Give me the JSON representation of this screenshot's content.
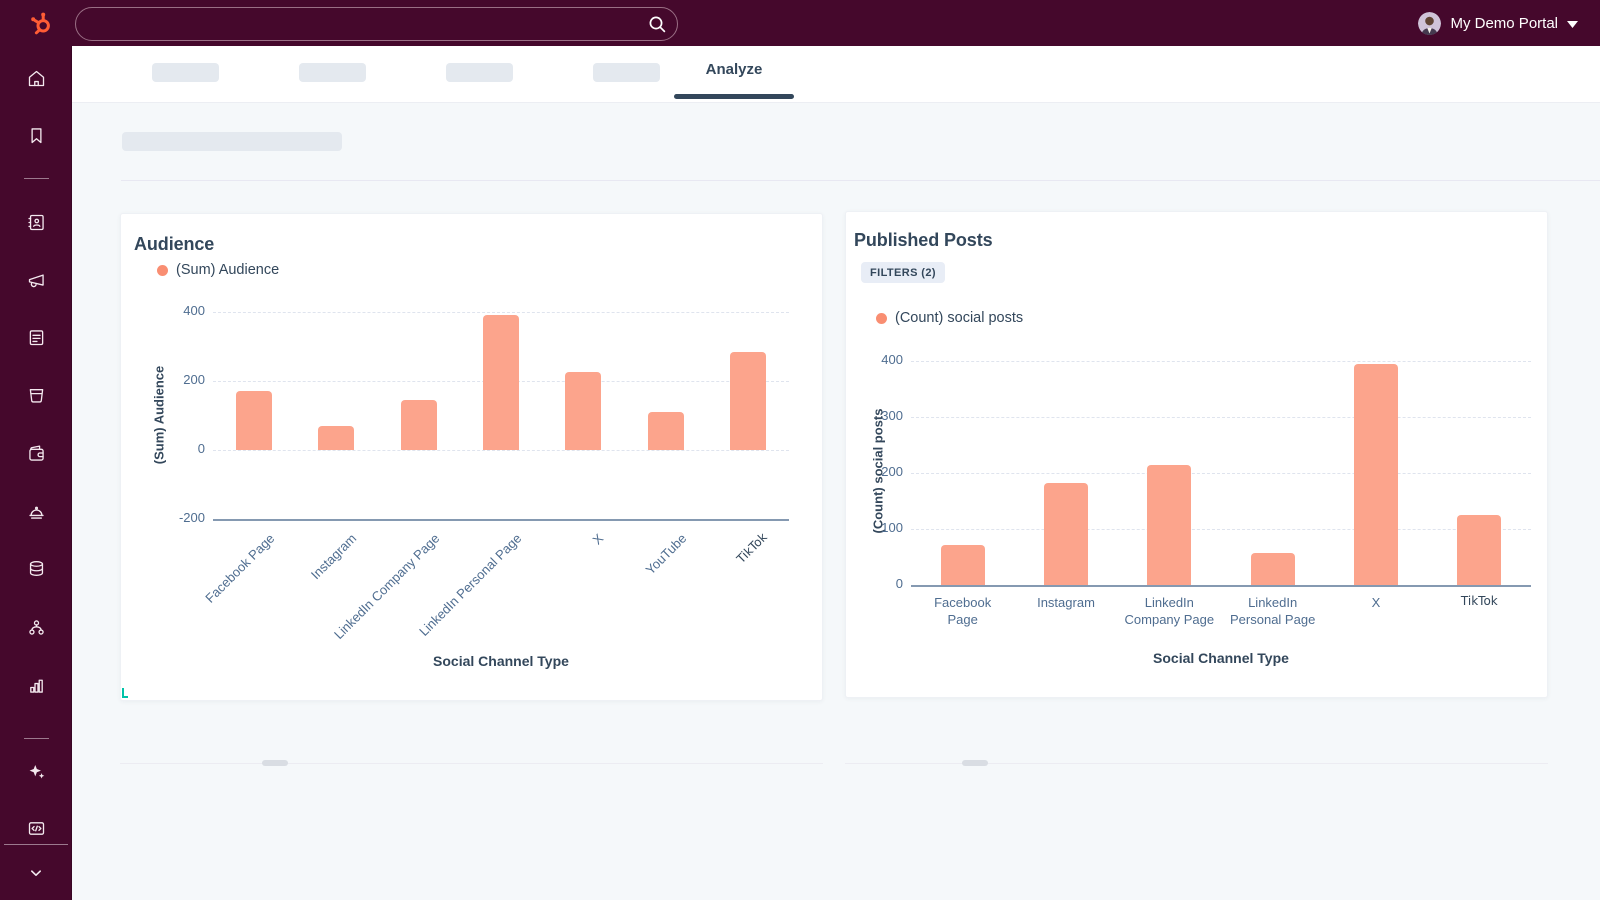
{
  "topbar": {
    "portal_name": "My Demo Portal",
    "search_placeholder": ""
  },
  "tab_bar": {
    "active_tab": "Analyze",
    "skeleton_tab_count": 4
  },
  "sidebar": {
    "icons": [
      "home",
      "bookmarks",
      "contacts-crm",
      "marketing-megaphone",
      "content-forms",
      "commerce-basket",
      "payments-wallet",
      "service-bell",
      "data-management-database",
      "automations-workflow",
      "reporting-bar-chart",
      "ai-sparkles",
      "developer-code",
      "collapse-chevron-down"
    ]
  },
  "colors": {
    "topbar_bg": "#45082c",
    "logo_orange": "#ff5c35",
    "bar_fill": "#fca48c",
    "legend_dot": "#f98e72",
    "heading_text": "#33475b",
    "tick_text": "#4f6d90",
    "accent_teal": "#00c2a8",
    "page_bg": "#f5f8fa",
    "skeleton_gray": "#e4e9ef"
  },
  "chart_data": [
    {
      "type": "bar",
      "title": "Audience",
      "legend": "(Sum) Audience",
      "xlabel": "Social Channel Type",
      "ylabel": "(Sum) Audience",
      "categories": [
        "Facebook Page",
        "Instagram",
        "LinkedIn Company Page",
        "LinkedIn Personal Page",
        "X",
        "YouTube",
        "TikTok"
      ],
      "values": [
        170,
        70,
        145,
        390,
        225,
        110,
        285
      ],
      "ylim": [
        -200,
        400
      ],
      "yticks": [
        400,
        200,
        0,
        -200
      ],
      "grid": "horizontal-dashed",
      "legend_position": "top-left",
      "x_label_rotation_deg": -45,
      "bar_color": "#fca48c",
      "fallback_font_labels": [
        "TikTok"
      ]
    },
    {
      "type": "bar",
      "title": "Published Posts",
      "filters_badge": "FILTERS (2)",
      "legend": "(Count) social posts",
      "xlabel": "Social Channel Type",
      "ylabel": "(Count) social posts",
      "categories": [
        "Facebook Page",
        "Instagram",
        "LinkedIn Company Page",
        "LinkedIn Personal Page",
        "X",
        "TikTok"
      ],
      "values": [
        72,
        182,
        215,
        58,
        395,
        125
      ],
      "ylim": [
        0,
        400
      ],
      "yticks": [
        400,
        300,
        200,
        100,
        0
      ],
      "grid": "horizontal-dashed",
      "legend_position": "top-left",
      "x_label_rotation_deg": 0,
      "bar_color": "#fca48c",
      "fallback_font_labels": [
        "TikTok"
      ]
    }
  ]
}
